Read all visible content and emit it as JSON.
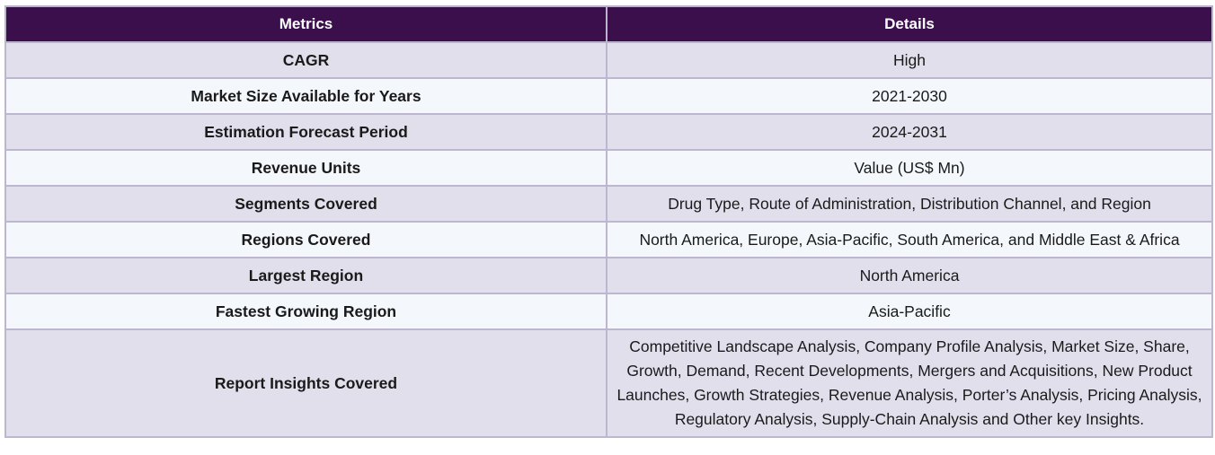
{
  "table": {
    "headers": [
      "Metrics",
      "Details"
    ],
    "rows": [
      {
        "metric": "CAGR",
        "details": "High"
      },
      {
        "metric": "Market Size Available for Years",
        "details": "2021-2030"
      },
      {
        "metric": "Estimation Forecast Period",
        "details": "2024-2031"
      },
      {
        "metric": "Revenue Units",
        "details": "Value (US$ Mn)"
      },
      {
        "metric": "Segments Covered",
        "details": "Drug Type, Route of Administration, Distribution Channel, and Region"
      },
      {
        "metric": "Regions Covered",
        "details": "North America, Europe, Asia-Pacific, South America, and Middle East & Africa"
      },
      {
        "metric": "Largest Region",
        "details": "North America"
      },
      {
        "metric": "Fastest Growing Region",
        "details": "Asia-Pacific"
      },
      {
        "metric": "Report Insights Covered",
        "details": "Competitive Landscape Analysis, Company Profile Analysis, Market Size, Share, Growth, Demand, Recent Developments, Mergers and Acquisitions, New Product Launches, Growth Strategies, Revenue Analysis, Porter’s Analysis, Pricing Analysis, Regulatory Analysis, Supply-Chain Analysis and Other key Insights."
      }
    ]
  },
  "colors": {
    "header_background": "#3a0f4c",
    "header_text": "#ffffff",
    "row_odd": "#e2dfed",
    "row_even": "#f4f8fc",
    "border": "#bcb6d0"
  }
}
